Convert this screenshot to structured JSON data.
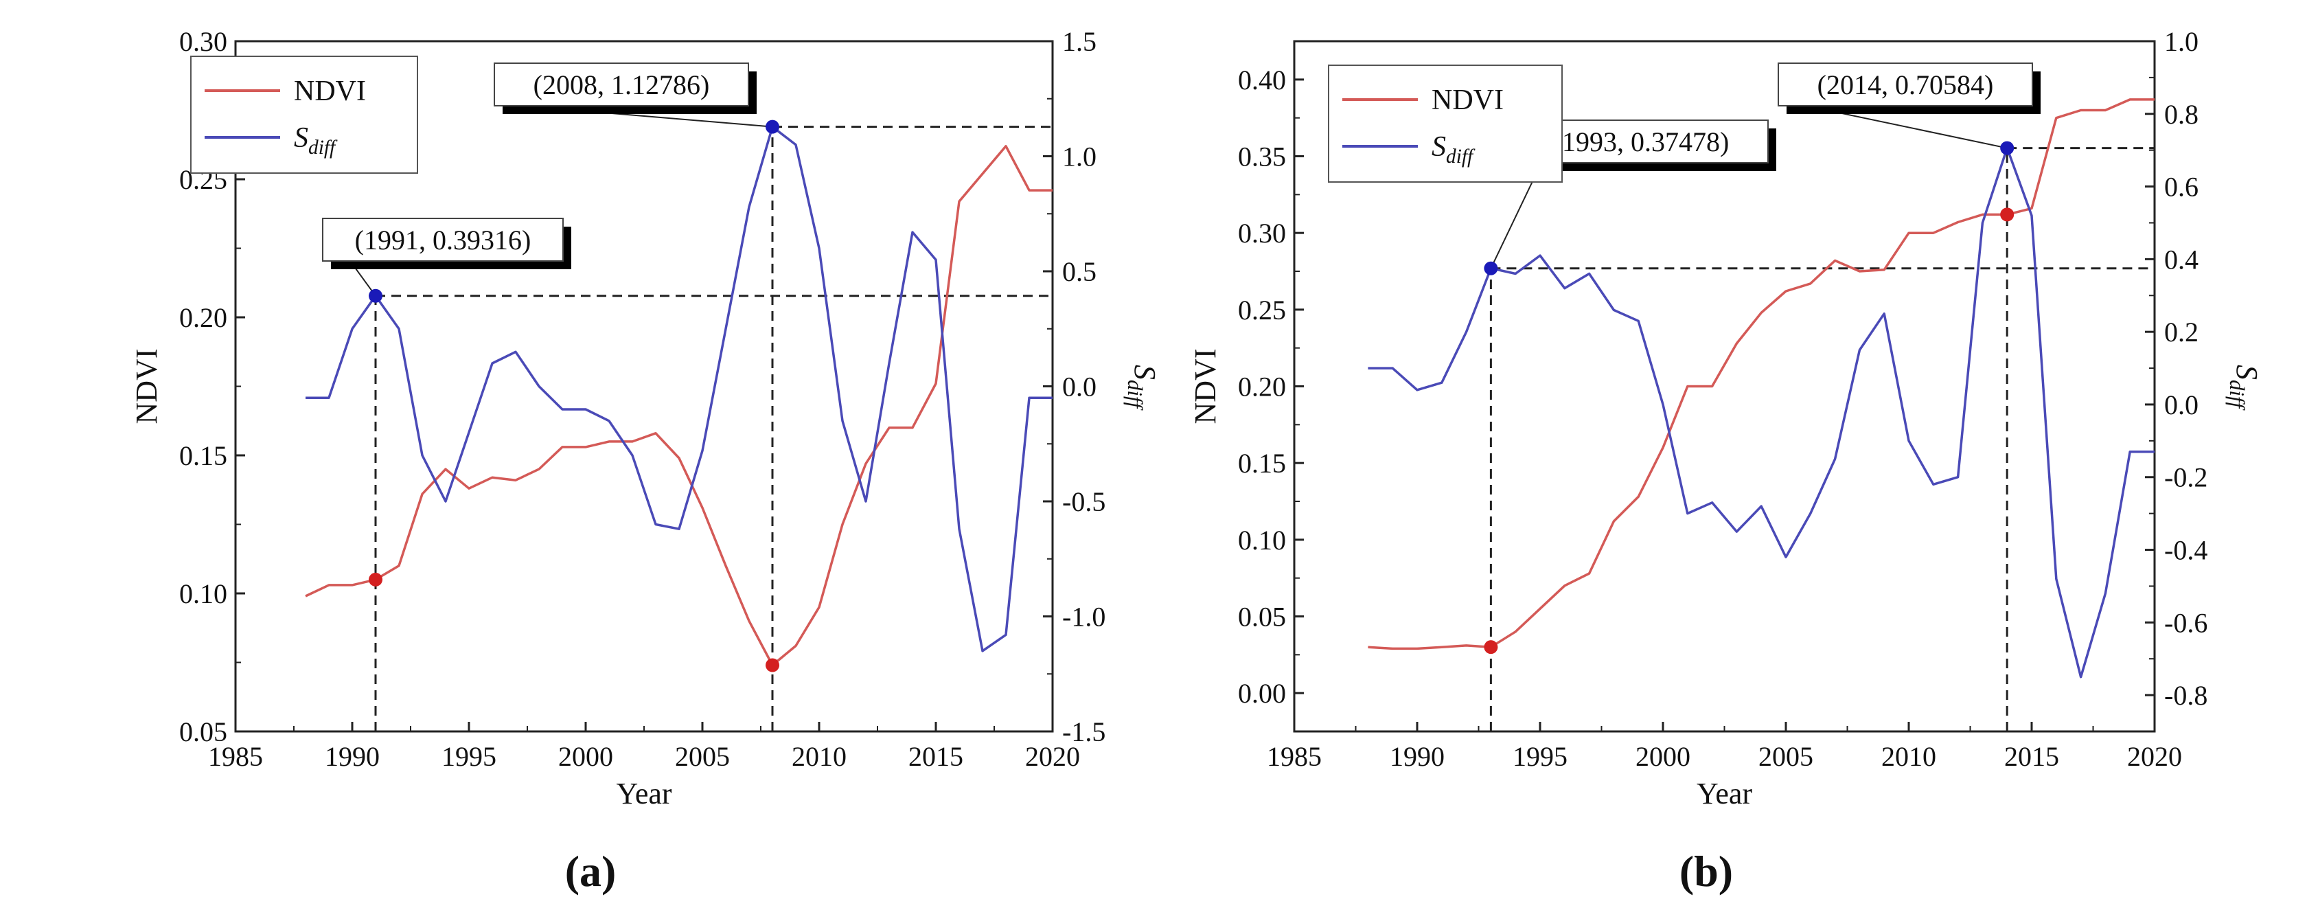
{
  "colors": {
    "ndvi": "#d45a57",
    "sdiff": "#4a4ab7",
    "marker_red": "#d42020",
    "marker_blue": "#1a1ab8"
  },
  "chart_data": [
    {
      "id": "a",
      "type": "line",
      "panel_label": "(a)",
      "xlabel": "Year",
      "ylabel": "NDVI",
      "y2label": "S",
      "y2label_sub": "diff",
      "xlim": [
        1985,
        2020
      ],
      "ylim": [
        0.05,
        0.3
      ],
      "y2lim": [
        -1.5,
        1.5
      ],
      "xticks": [
        "1985",
        "1990",
        "1995",
        "2000",
        "2005",
        "2010",
        "2015",
        "2020"
      ],
      "yticks": [
        "0.05",
        "0.10",
        "0.15",
        "0.20",
        "0.25",
        "0.30"
      ],
      "y2ticks": [
        "-1.5",
        "-1.0",
        "-0.5",
        "0.0",
        "0.5",
        "1.0",
        "1.5"
      ],
      "legend": {
        "ndvi": "NDVI",
        "sdiff": "S",
        "sdiff_sub": "diff"
      },
      "x": [
        1988,
        1989,
        1990,
        1991,
        1992,
        1993,
        1994,
        1995,
        1996,
        1997,
        1998,
        1999,
        2000,
        2001,
        2002,
        2003,
        2004,
        2005,
        2006,
        2007,
        2008,
        2009,
        2010,
        2011,
        2012,
        2013,
        2014,
        2015,
        2016,
        2017,
        2018,
        2019,
        2020
      ],
      "series": [
        {
          "name": "NDVI",
          "axis": "left",
          "values": [
            0.099,
            0.103,
            0.103,
            0.105,
            0.11,
            0.136,
            0.145,
            0.138,
            0.142,
            0.141,
            0.145,
            0.153,
            0.153,
            0.155,
            0.155,
            0.158,
            0.149,
            0.131,
            0.11,
            0.09,
            0.074,
            0.081,
            0.095,
            0.125,
            0.147,
            0.16,
            0.16,
            0.176,
            0.242,
            0.252,
            0.262,
            0.246,
            0.246
          ]
        },
        {
          "name": "S_diff",
          "axis": "right",
          "values": [
            -0.05,
            -0.05,
            0.25,
            0.393,
            0.25,
            -0.3,
            -0.5,
            -0.2,
            0.1,
            0.15,
            0.0,
            -0.1,
            -0.1,
            -0.15,
            -0.3,
            -0.6,
            -0.62,
            -0.28,
            0.25,
            0.78,
            1.128,
            1.05,
            0.6,
            -0.15,
            -0.5,
            0.1,
            0.67,
            0.55,
            -0.62,
            -1.15,
            -1.08,
            -0.05,
            -0.05
          ]
        }
      ],
      "annotations": [
        {
          "label": "(1991, 0.39316)",
          "x": 1991,
          "y2": 0.39316,
          "ndvi": 0.105
        },
        {
          "label": "(2008, 1.12786)",
          "x": 2008,
          "y2": 1.12786,
          "ndvi": 0.074
        }
      ]
    },
    {
      "id": "b",
      "type": "line",
      "panel_label": "(b)",
      "xlabel": "Year",
      "ylabel": "NDVI",
      "y2label": "S",
      "y2label_sub": "diff",
      "xlim": [
        1985,
        2020
      ],
      "ylim": [
        -0.025,
        0.425
      ],
      "y2lim": [
        -0.9,
        1.0
      ],
      "xticks": [
        "1985",
        "1990",
        "1995",
        "2000",
        "2005",
        "2010",
        "2015",
        "2020"
      ],
      "yticks": [
        "0.00",
        "0.05",
        "0.10",
        "0.15",
        "0.20",
        "0.25",
        "0.30",
        "0.35",
        "0.40"
      ],
      "y2ticks": [
        "-0.8",
        "-0.6",
        "-0.4",
        "-0.2",
        "0.0",
        "0.2",
        "0.4",
        "0.6",
        "0.8",
        "1.0"
      ],
      "legend": {
        "ndvi": "NDVI",
        "sdiff": "S",
        "sdiff_sub": "diff"
      },
      "x": [
        1988,
        1989,
        1990,
        1991,
        1992,
        1993,
        1994,
        1995,
        1996,
        1997,
        1998,
        1999,
        2000,
        2001,
        2002,
        2003,
        2004,
        2005,
        2006,
        2007,
        2008,
        2009,
        2010,
        2011,
        2012,
        2013,
        2014,
        2015,
        2016,
        2017,
        2018,
        2019,
        2020
      ],
      "series": [
        {
          "name": "NDVI",
          "axis": "left",
          "values": [
            0.03,
            0.029,
            0.029,
            0.03,
            0.031,
            0.03,
            0.04,
            0.055,
            0.07,
            0.078,
            0.112,
            0.128,
            0.16,
            0.2,
            0.2,
            0.228,
            0.248,
            0.262,
            0.267,
            0.282,
            0.275,
            0.276,
            0.3,
            0.3,
            0.307,
            0.312,
            0.312,
            0.316,
            0.375,
            0.38,
            0.38,
            0.387,
            0.387
          ]
        },
        {
          "name": "S_diff",
          "axis": "right",
          "values": [
            0.1,
            0.1,
            0.04,
            0.06,
            0.2,
            0.375,
            0.36,
            0.41,
            0.32,
            0.36,
            0.26,
            0.23,
            0.0,
            -0.3,
            -0.27,
            -0.35,
            -0.28,
            -0.42,
            -0.3,
            -0.15,
            0.15,
            0.25,
            -0.1,
            -0.22,
            -0.2,
            0.5,
            0.706,
            0.52,
            -0.48,
            -0.75,
            -0.52,
            -0.13,
            -0.13
          ]
        }
      ],
      "annotations": [
        {
          "label": "(1993, 0.37478)",
          "x": 1993,
          "y2": 0.37478,
          "ndvi": 0.03
        },
        {
          "label": "(2014, 0.70584)",
          "x": 2014,
          "y2": 0.70584,
          "ndvi": 0.312
        }
      ]
    }
  ]
}
